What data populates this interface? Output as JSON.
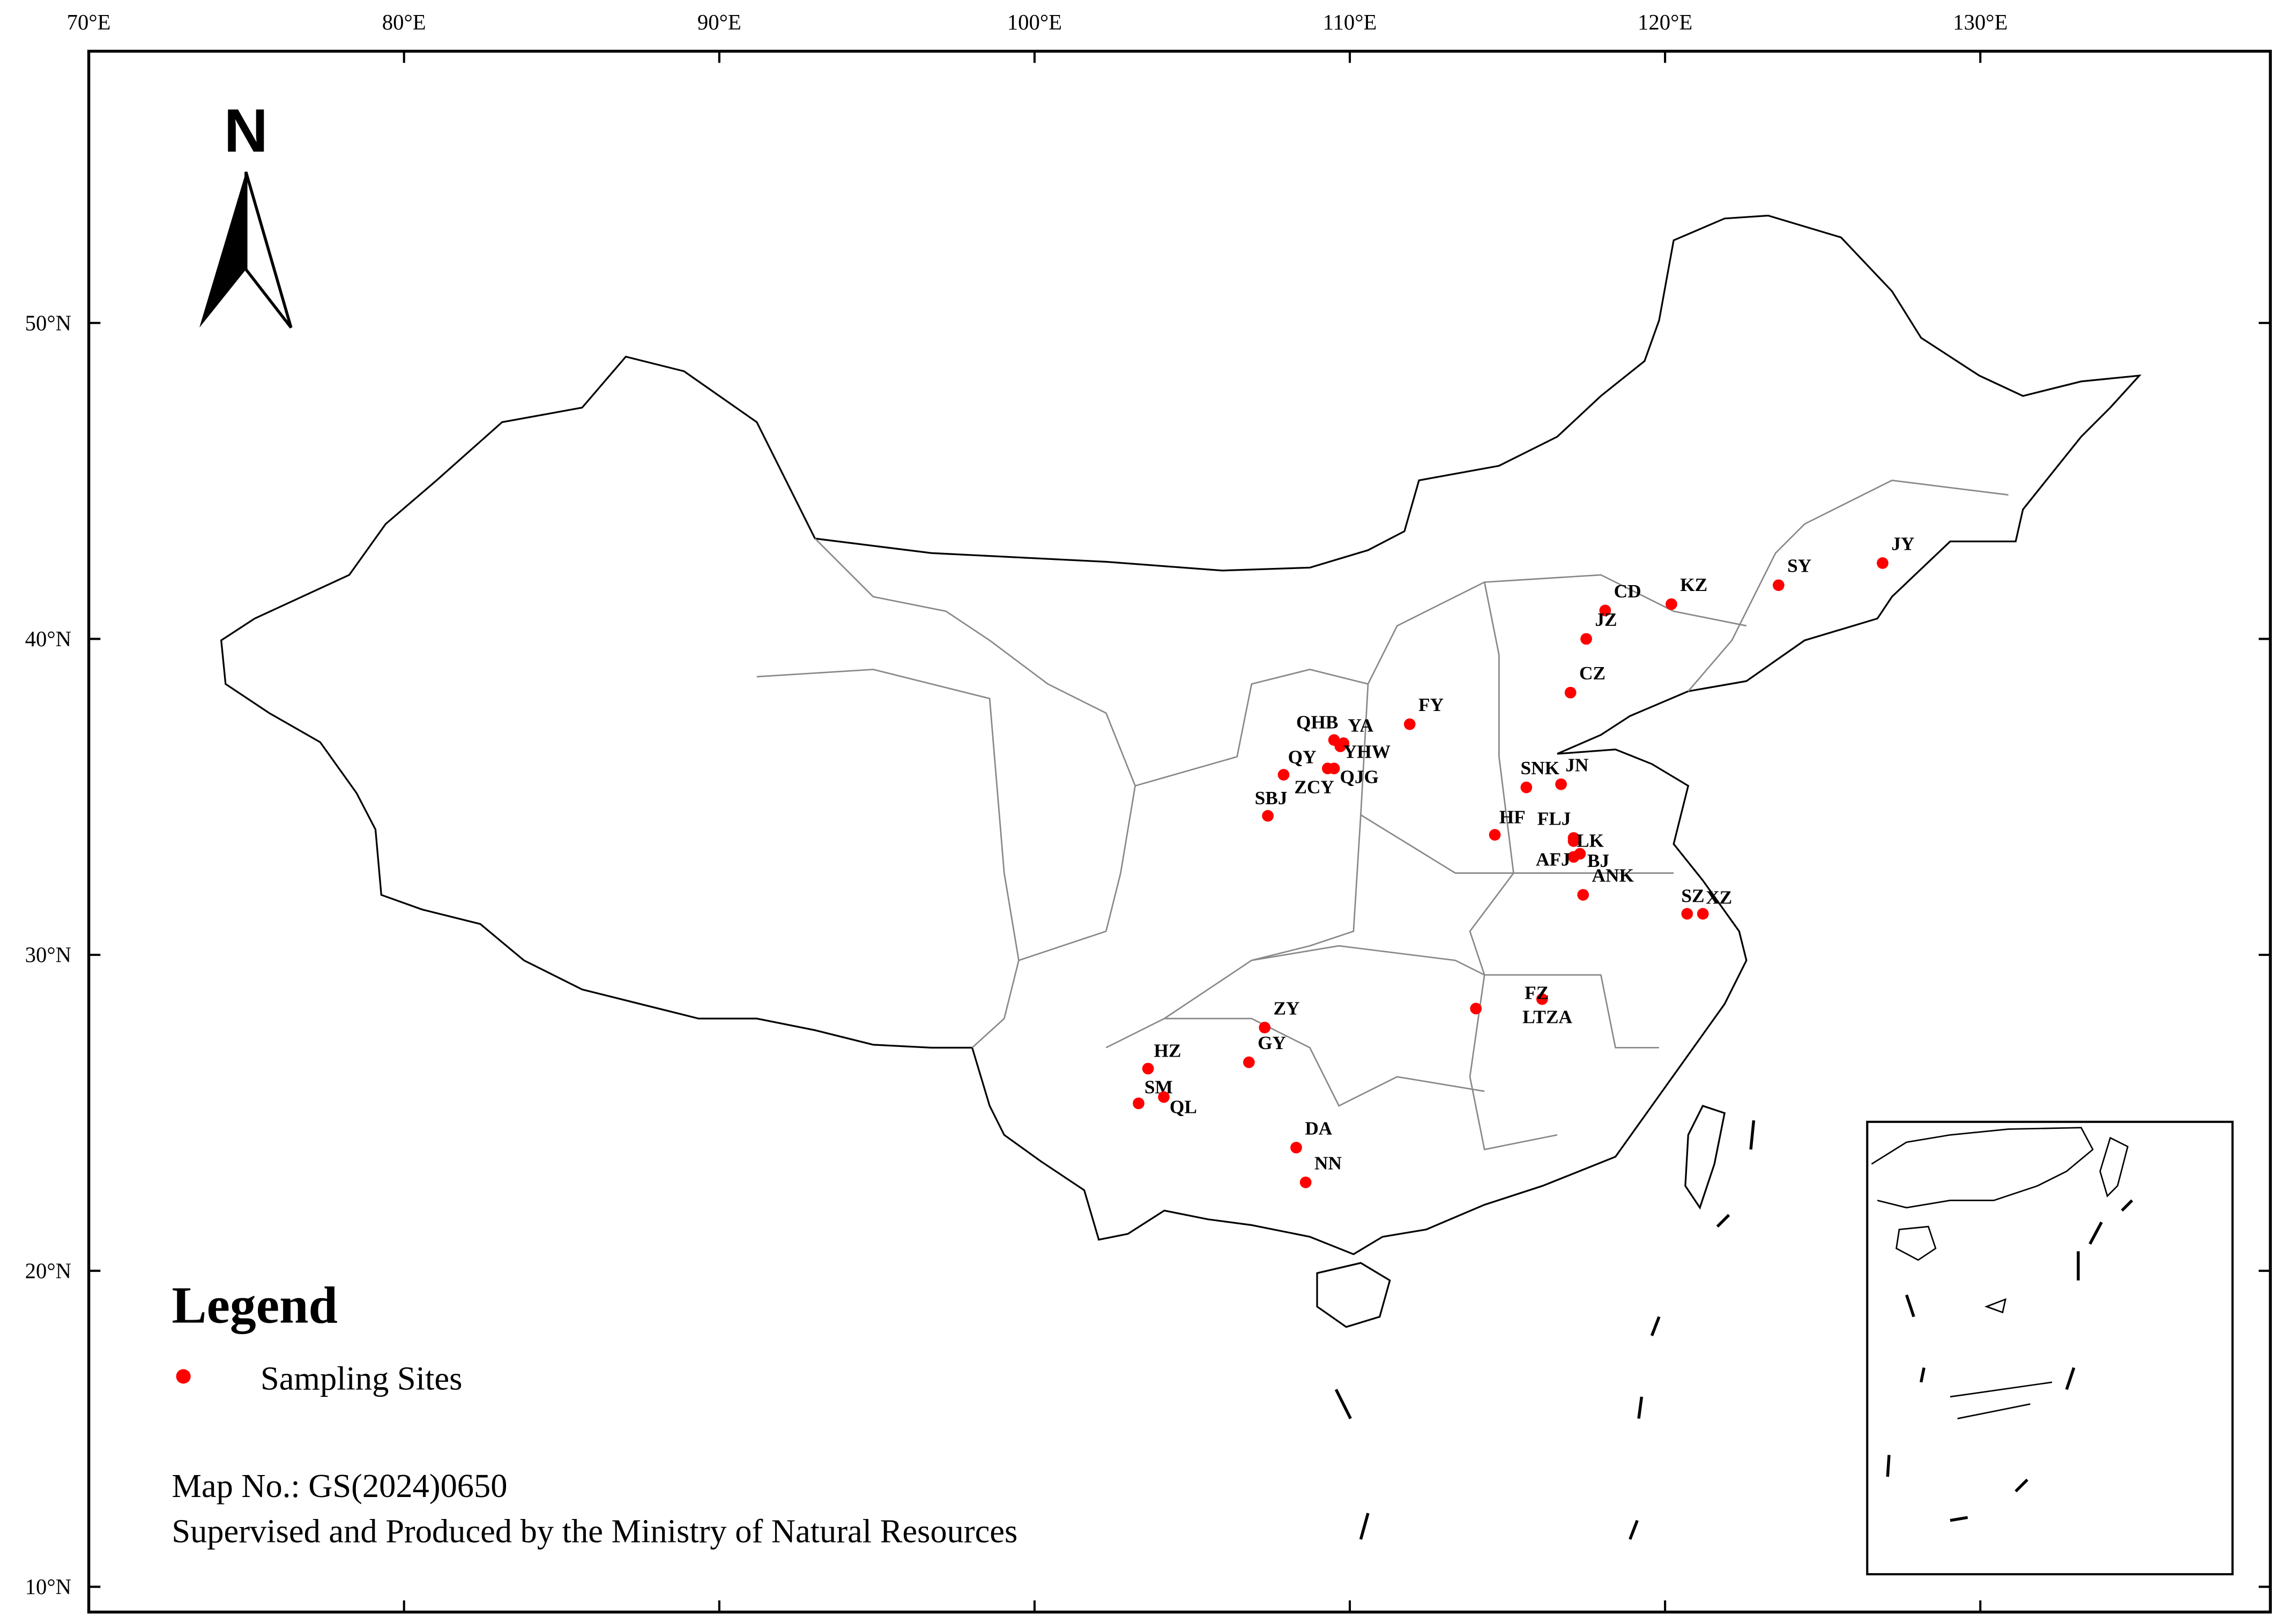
{
  "map": {
    "xlim": [
      70,
      139.2
    ],
    "ylim": [
      9.2,
      58.6
    ],
    "xticks": [
      {
        "value": 70,
        "label": "70°E"
      },
      {
        "value": 80,
        "label": "80°E"
      },
      {
        "value": 90,
        "label": "90°E"
      },
      {
        "value": 100,
        "label": "100°E"
      },
      {
        "value": 110,
        "label": "110°E"
      },
      {
        "value": 120,
        "label": "120°E"
      },
      {
        "value": 130,
        "label": "130°E"
      }
    ],
    "yticks": [
      {
        "value": 10,
        "label": "10°N"
      },
      {
        "value": 20,
        "label": "20°N"
      },
      {
        "value": 30,
        "label": "30°N"
      },
      {
        "value": 40,
        "label": "40°N"
      },
      {
        "value": 50,
        "label": "50°N"
      }
    ],
    "north_arrow": "N",
    "point_color": "#ff0000",
    "sites": [
      {
        "name": "JY",
        "lon": 126.9,
        "lat": 42.4
      },
      {
        "name": "SY",
        "lon": 123.6,
        "lat": 41.7
      },
      {
        "name": "KZ",
        "lon": 120.2,
        "lat": 41.1
      },
      {
        "name": "CD",
        "lon": 118.1,
        "lat": 40.9
      },
      {
        "name": "JZ",
        "lon": 117.5,
        "lat": 40.0
      },
      {
        "name": "CZ",
        "lon": 117.0,
        "lat": 38.3
      },
      {
        "name": "FY",
        "lon": 111.9,
        "lat": 37.3
      },
      {
        "name": "QHB",
        "lon": 109.5,
        "lat": 36.8
      },
      {
        "name": "YA",
        "lon": 109.8,
        "lat": 36.7
      },
      {
        "name": "YHW",
        "lon": 109.7,
        "lat": 36.6
      },
      {
        "name": "QY",
        "lon": 107.9,
        "lat": 35.7
      },
      {
        "name": "ZCY",
        "lon": 109.3,
        "lat": 35.9
      },
      {
        "name": "QJG",
        "lon": 109.5,
        "lat": 35.9
      },
      {
        "name": "SBJ",
        "lon": 107.4,
        "lat": 34.4
      },
      {
        "name": "SNK",
        "lon": 115.6,
        "lat": 35.3
      },
      {
        "name": "JN",
        "lon": 116.7,
        "lat": 35.4
      },
      {
        "name": "HF",
        "lon": 114.6,
        "lat": 33.8
      },
      {
        "name": "FLJ",
        "lon": 117.1,
        "lat": 33.7
      },
      {
        "name": "LK",
        "lon": 117.1,
        "lat": 33.6
      },
      {
        "name": "AFJ",
        "lon": 117.1,
        "lat": 33.1
      },
      {
        "name": "BJ",
        "lon": 117.3,
        "lat": 33.2
      },
      {
        "name": "ANK",
        "lon": 117.4,
        "lat": 31.9
      },
      {
        "name": "SZ",
        "lon": 120.7,
        "lat": 31.3
      },
      {
        "name": "XZ",
        "lon": 121.2,
        "lat": 31.3
      },
      {
        "name": "FZ",
        "lon": 116.1,
        "lat": 28.6
      },
      {
        "name": "LTZA",
        "lon": 114.0,
        "lat": 28.3
      },
      {
        "name": "ZY",
        "lon": 107.3,
        "lat": 27.7
      },
      {
        "name": "GY",
        "lon": 106.8,
        "lat": 26.6
      },
      {
        "name": "HZ",
        "lon": 103.6,
        "lat": 26.4
      },
      {
        "name": "SM",
        "lon": 103.3,
        "lat": 25.3
      },
      {
        "name": "QL",
        "lon": 104.1,
        "lat": 25.5
      },
      {
        "name": "DA",
        "lon": 108.3,
        "lat": 23.9
      },
      {
        "name": "NN",
        "lon": 108.6,
        "lat": 22.8
      }
    ],
    "legend": {
      "title": "Legend",
      "item": "Sampling Sites"
    },
    "notes": [
      "Map No.: GS(2024)0650",
      "Supervised and Produced by the Ministry of Natural Resources"
    ]
  }
}
